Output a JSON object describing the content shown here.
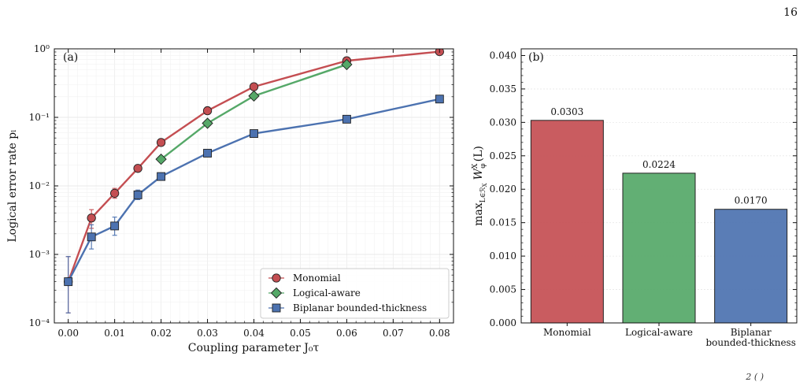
{
  "page": {
    "number": "16",
    "cutoff_text": "2   ( )"
  },
  "colors": {
    "monomial": "#c44e52",
    "logical_aware": "#55a868",
    "biplanar": "#4c72b0",
    "axis": "#111111"
  },
  "chart_data": [
    {
      "panel": "(a)",
      "type": "line",
      "xlabel": "Coupling parameter J₀τ",
      "ylabel": "Logical error rate pₗ",
      "yscale": "log",
      "xlim": [
        -0.003,
        0.083
      ],
      "ylim": [
        0.0001,
        1
      ],
      "x_ticks": [
        "0.00",
        "0.01",
        "0.02",
        "0.03",
        "0.04",
        "0.05",
        "0.06",
        "0.07",
        "0.08"
      ],
      "y_ticks": [
        "10⁻⁴",
        "10⁻³",
        "10⁻²",
        "10⁻¹",
        "10⁰"
      ],
      "grid": true,
      "legend_position": "lower-right",
      "series": [
        {
          "name": "Monomial",
          "marker": "circle",
          "color": "#c44e52",
          "x": [
            0.0,
            0.005,
            0.01,
            0.015,
            0.02,
            0.03,
            0.04,
            0.06,
            0.08
          ],
          "y": [
            0.0004,
            0.0034,
            0.0078,
            0.018,
            0.043,
            0.125,
            0.28,
            0.67,
            0.91
          ],
          "err": [
            [
              0.00014,
              0.00093
            ],
            [
              0.0024,
              0.0045
            ],
            [
              0.0066,
              0.0092
            ],
            null,
            null,
            null,
            null,
            null,
            null
          ]
        },
        {
          "name": "Logical-aware",
          "marker": "diamond",
          "color": "#55a868",
          "x": [
            0.02,
            0.03,
            0.04,
            0.06
          ],
          "y": [
            0.0245,
            0.082,
            0.205,
            0.59
          ],
          "err": [
            null,
            null,
            null,
            null
          ]
        },
        {
          "name": "Biplanar bounded-thickness",
          "marker": "square",
          "color": "#4c72b0",
          "x": [
            0.0,
            0.005,
            0.01,
            0.015,
            0.02,
            0.03,
            0.04,
            0.06,
            0.08
          ],
          "y": [
            0.0004,
            0.0018,
            0.0026,
            0.0074,
            0.0137,
            0.03,
            0.058,
            0.094,
            0.185
          ],
          "err": [
            [
              0.00014,
              0.00093
            ],
            [
              0.0012,
              0.0027
            ],
            [
              0.0019,
              0.0035
            ],
            [
              0.0063,
              0.0087
            ],
            null,
            null,
            null,
            null,
            null
          ]
        }
      ]
    },
    {
      "panel": "(b)",
      "type": "bar",
      "ylabel": "max_{L∈R_X} Wᵡˣ(L)",
      "ylabel_main": "max",
      "ylabel_sub": "L∈ℛ",
      "ylabel_sub2": "X",
      "ylabel_w": "W",
      "ylabel_wsup": "X",
      "ylabel_wsub": "φ",
      "ylabel_arg": "(L)",
      "ylim": [
        0,
        0.041
      ],
      "y_ticks": [
        "0.000",
        "0.005",
        "0.010",
        "0.015",
        "0.020",
        "0.025",
        "0.030",
        "0.035",
        "0.040"
      ],
      "grid": true,
      "categories": [
        "Monomial",
        "Logical-aware",
        "Biplanar\nbounded-thickness"
      ],
      "values": [
        0.0303,
        0.0224,
        0.017
      ],
      "value_labels": [
        "0.0303",
        "0.0224",
        "0.0170"
      ],
      "colors": [
        "#c44e52",
        "#55a868",
        "#4c72b0"
      ]
    }
  ]
}
